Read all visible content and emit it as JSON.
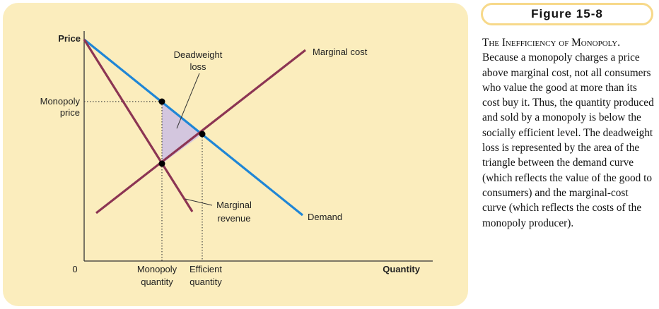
{
  "figure": {
    "label": "Figure 15-8"
  },
  "caption": {
    "heading": "The Inefficiency of Monopoly.",
    "body": "Because a monopoly charges a price above marginal cost, not all consumers who value the good at more than its cost buy it. Thus, the quantity produced and sold by a monopoly is below the socially efficient level. The deadweight loss is represented by the area of the triangle between the demand curve (which reflects the value of the good to consumers) and the marginal-cost curve (which reflects the costs of the monopoly producer)."
  },
  "diagram": {
    "axes": {
      "y_label": "Price",
      "x_label": "Quantity",
      "origin_label": "0"
    },
    "labels": {
      "monopoly_price_1": "Monopoly",
      "monopoly_price_2": "price",
      "deadweight_1": "Deadweight",
      "deadweight_2": "loss",
      "marginal_cost": "Marginal cost",
      "marginal_revenue_1": "Marginal",
      "marginal_revenue_2": "revenue",
      "demand": "Demand",
      "monopoly_qty_1": "Monopoly",
      "monopoly_qty_2": "quantity",
      "efficient_qty_1": "Efficient",
      "efficient_qty_2": "quantity"
    },
    "colors": {
      "demand": "#1f86d6",
      "marginal_cost": "#8c3553",
      "marginal_revenue": "#8c3553",
      "deadweight_fill": "#d3c6de",
      "panel": "#fbedbd",
      "badge_border": "#f7d98a"
    }
  }
}
